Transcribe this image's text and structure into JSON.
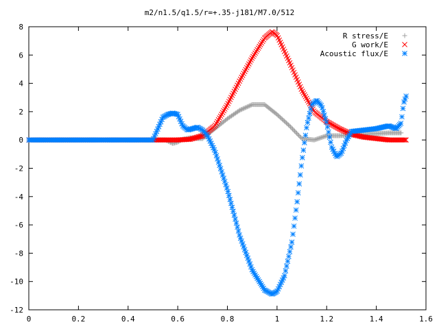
{
  "chart_data": {
    "type": "scatter",
    "title": "m2/n1.5/q1.5/r=+.35-j181/M7.0/512",
    "xlabel": "",
    "ylabel": "",
    "xlim": [
      0,
      1.6
    ],
    "ylim": [
      -12,
      8
    ],
    "xticks": [
      "0",
      "0.2",
      "0.4",
      "0.6",
      "0.8",
      "1",
      "1.2",
      "1.4",
      "1.6"
    ],
    "yticks": [
      "8",
      "6",
      "4",
      "2",
      "0",
      "-2",
      "-4",
      "-6",
      "-8",
      "-10",
      "-12"
    ],
    "grid": false,
    "legend_position": "top-right",
    "series": [
      {
        "name": "R stress/E",
        "marker": "+",
        "color": "#a0a0a0",
        "x": [
          0.0,
          0.1,
          0.2,
          0.3,
          0.4,
          0.5,
          0.55,
          0.58,
          0.6,
          0.62,
          0.65,
          0.68,
          0.7,
          0.75,
          0.8,
          0.85,
          0.9,
          0.95,
          1.0,
          1.05,
          1.1,
          1.15,
          1.2,
          1.25,
          1.3,
          1.35,
          1.4,
          1.45,
          1.5
        ],
        "y": [
          0.0,
          0.0,
          0.0,
          0.0,
          0.0,
          0.0,
          0.0,
          -0.25,
          -0.15,
          0.05,
          0.15,
          0.1,
          0.1,
          0.8,
          1.5,
          2.1,
          2.5,
          2.5,
          1.8,
          1.0,
          0.1,
          0.0,
          0.3,
          0.3,
          0.35,
          0.4,
          0.45,
          0.5,
          0.5
        ]
      },
      {
        "name": "G work/E",
        "marker": "x",
        "color": "#ff0000",
        "x": [
          0.0,
          0.1,
          0.2,
          0.3,
          0.4,
          0.5,
          0.55,
          0.6,
          0.65,
          0.7,
          0.75,
          0.8,
          0.85,
          0.9,
          0.95,
          0.98,
          1.0,
          1.05,
          1.1,
          1.15,
          1.2,
          1.25,
          1.3,
          1.35,
          1.4,
          1.45,
          1.5,
          1.52
        ],
        "y": [
          0.0,
          0.0,
          0.0,
          0.0,
          0.0,
          0.0,
          0.0,
          0.0,
          0.05,
          0.3,
          1.0,
          2.5,
          4.2,
          5.8,
          7.2,
          7.65,
          7.4,
          5.5,
          3.5,
          2.0,
          1.3,
          0.8,
          0.4,
          0.2,
          0.1,
          0.0,
          0.0,
          0.0
        ]
      },
      {
        "name": "Acoustic flux/E",
        "marker": "*",
        "color": "#0080ff",
        "x": [
          0.0,
          0.1,
          0.2,
          0.3,
          0.4,
          0.5,
          0.54,
          0.56,
          0.58,
          0.6,
          0.62,
          0.64,
          0.66,
          0.68,
          0.7,
          0.72,
          0.75,
          0.8,
          0.85,
          0.9,
          0.95,
          0.98,
          1.0,
          1.03,
          1.06,
          1.08,
          1.1,
          1.12,
          1.14,
          1.16,
          1.18,
          1.2,
          1.22,
          1.24,
          1.26,
          1.28,
          1.3,
          1.35,
          1.4,
          1.45,
          1.48,
          1.5,
          1.51,
          1.52
        ],
        "y": [
          0.0,
          0.0,
          0.0,
          0.0,
          0.0,
          0.0,
          1.6,
          1.8,
          1.9,
          1.8,
          1.0,
          0.7,
          0.8,
          0.9,
          0.7,
          0.3,
          -0.8,
          -3.5,
          -6.8,
          -9.2,
          -10.6,
          -10.9,
          -10.7,
          -9.6,
          -7.2,
          -4.5,
          -1.5,
          1.0,
          2.5,
          2.8,
          2.4,
          1.2,
          -0.5,
          -1.2,
          -0.9,
          0.0,
          0.6,
          0.7,
          0.8,
          1.0,
          0.8,
          1.2,
          2.6,
          3.1
        ]
      }
    ]
  }
}
